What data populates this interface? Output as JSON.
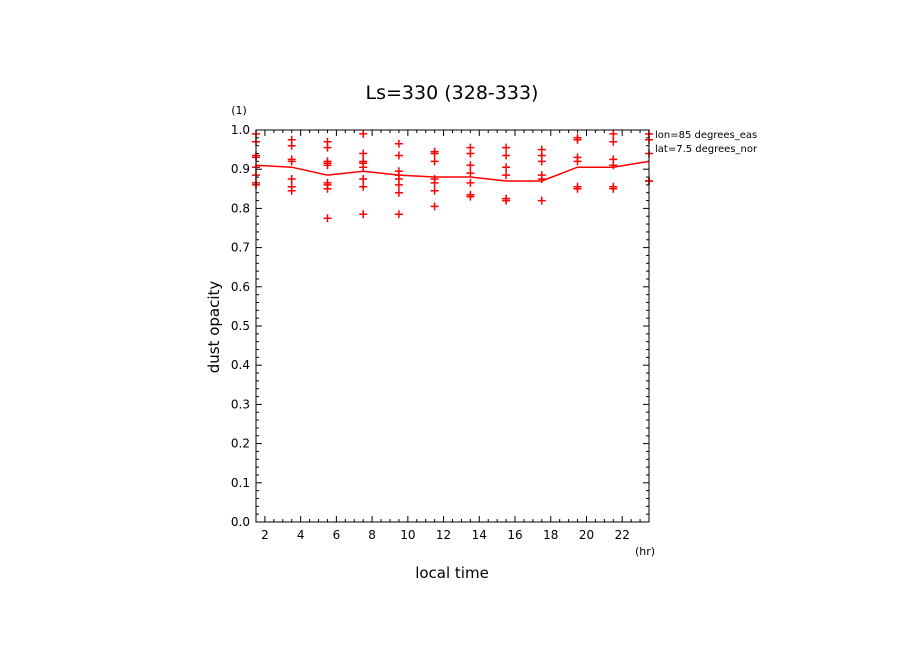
{
  "chart_data": {
    "type": "scatter",
    "title": "Ls=330 (328-333)",
    "xlabel": "local time",
    "ylabel": "dust opacity",
    "x_unit": "(hr)",
    "y_unit": "(1)",
    "xlim": [
      1.5,
      23.5
    ],
    "ylim": [
      0.0,
      1.0
    ],
    "x_ticks": [
      "2",
      "4",
      "6",
      "8",
      "10",
      "12",
      "14",
      "16",
      "18",
      "20",
      "22"
    ],
    "y_ticks": [
      "0.0",
      "0.1",
      "0.2",
      "0.3",
      "0.4",
      "0.5",
      "0.6",
      "0.7",
      "0.8",
      "0.9",
      "1.0"
    ],
    "annotations": [
      "lon=85 degrees_eas",
      "lat=7.5 degrees_nor"
    ],
    "color": "#ff0000",
    "grid": false,
    "series": [
      {
        "kind": "line",
        "x": [
          1.5,
          3.5,
          5.5,
          7.5,
          9.5,
          11.5,
          13.5,
          15.5,
          17.5,
          19.5,
          21.5,
          23.5
        ],
        "y": [
          0.91,
          0.905,
          0.885,
          0.895,
          0.885,
          0.88,
          0.88,
          0.87,
          0.87,
          0.905,
          0.905,
          0.92
        ]
      },
      {
        "kind": "points",
        "x": [
          1.5,
          1.5,
          1.5,
          1.5,
          1.5,
          1.5,
          1.5,
          1.5,
          3.5,
          3.5,
          3.5,
          3.5,
          3.5,
          3.5,
          3.5,
          5.5,
          5.5,
          5.5,
          5.5,
          5.5,
          5.5,
          5.5,
          5.5,
          5.5,
          7.5,
          7.5,
          7.5,
          7.5,
          7.5,
          7.5,
          7.5,
          7.5,
          9.5,
          9.5,
          9.5,
          9.5,
          9.5,
          9.5,
          9.5,
          9.5,
          11.5,
          11.5,
          11.5,
          11.5,
          11.5,
          11.5,
          11.5,
          13.5,
          13.5,
          13.5,
          13.5,
          13.5,
          13.5,
          13.5,
          15.5,
          15.5,
          15.5,
          15.5,
          15.5,
          15.5,
          17.5,
          17.5,
          17.5,
          17.5,
          17.5,
          17.5,
          19.5,
          19.5,
          19.5,
          19.5,
          19.5,
          19.5,
          21.5,
          21.5,
          21.5,
          21.5,
          21.5,
          21.5,
          23.5,
          23.5,
          23.5,
          23.5,
          23.5
        ],
        "y": [
          0.99,
          0.97,
          0.935,
          0.93,
          0.905,
          0.885,
          0.865,
          0.86,
          0.975,
          0.96,
          0.925,
          0.92,
          0.875,
          0.855,
          0.845,
          0.97,
          0.955,
          0.92,
          0.915,
          0.91,
          0.865,
          0.86,
          0.85,
          0.775,
          0.99,
          0.94,
          0.92,
          0.915,
          0.905,
          0.875,
          0.855,
          0.785,
          0.965,
          0.935,
          0.895,
          0.885,
          0.875,
          0.86,
          0.84,
          0.785,
          0.945,
          0.94,
          0.92,
          0.875,
          0.865,
          0.845,
          0.805,
          0.955,
          0.94,
          0.91,
          0.89,
          0.865,
          0.835,
          0.83,
          0.955,
          0.935,
          0.905,
          0.885,
          0.825,
          0.82,
          0.95,
          0.935,
          0.92,
          0.885,
          0.875,
          0.82,
          0.98,
          0.975,
          0.93,
          0.92,
          0.855,
          0.85,
          0.99,
          0.97,
          0.925,
          0.91,
          0.855,
          0.85,
          0.99,
          0.975,
          0.94,
          0.87,
          0.87
        ]
      }
    ]
  }
}
